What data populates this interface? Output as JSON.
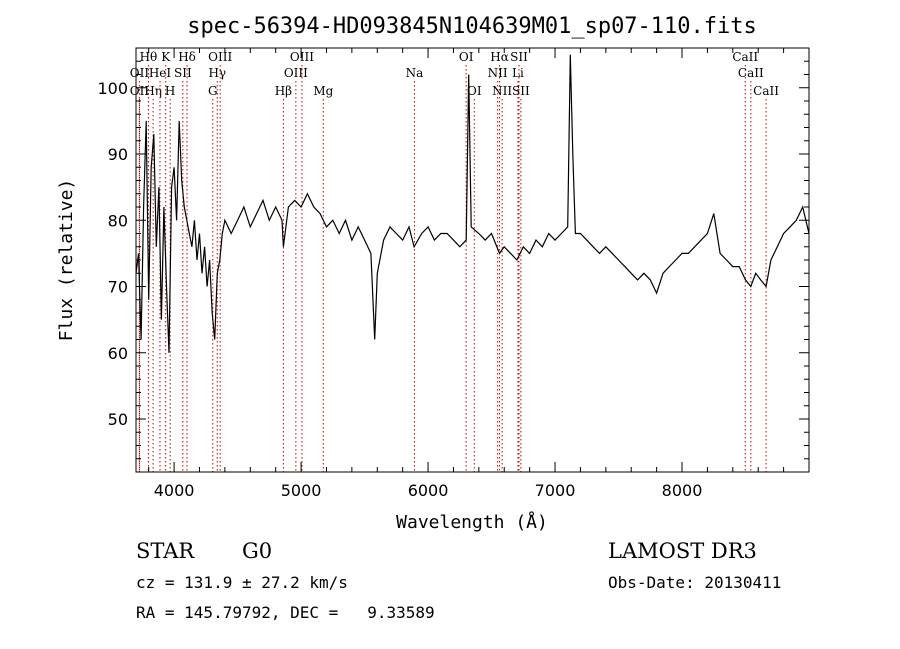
{
  "chart_data": {
    "type": "line",
    "title": "spec-56394-HD093845N104639M01_sp07-110.fits",
    "xlabel": "Wavelength (Å)",
    "ylabel": "Flux (relative)",
    "xlim": [
      3700,
      9000
    ],
    "ylim": [
      42,
      106
    ],
    "grid": false,
    "x_ticks": [
      {
        "value": 4000,
        "label": "4000"
      },
      {
        "value": 5000,
        "label": "5000"
      },
      {
        "value": 6000,
        "label": "6000"
      },
      {
        "value": 7000,
        "label": "7000"
      },
      {
        "value": 8000,
        "label": "8000"
      }
    ],
    "y_ticks": [
      {
        "value": 50,
        "label": "50"
      },
      {
        "value": 60,
        "label": "60"
      },
      {
        "value": 70,
        "label": "70"
      },
      {
        "value": 80,
        "label": "80"
      },
      {
        "value": 90,
        "label": "90"
      },
      {
        "value": 100,
        "label": "100"
      }
    ],
    "series": [
      {
        "name": "flux",
        "color": "#000000",
        "points": [
          [
            3700,
            72
          ],
          [
            3720,
            75
          ],
          [
            3740,
            62
          ],
          [
            3760,
            82
          ],
          [
            3780,
            95
          ],
          [
            3800,
            68
          ],
          [
            3820,
            88
          ],
          [
            3840,
            93
          ],
          [
            3860,
            76
          ],
          [
            3880,
            85
          ],
          [
            3900,
            65
          ],
          [
            3920,
            82
          ],
          [
            3940,
            70
          ],
          [
            3960,
            60
          ],
          [
            3980,
            85
          ],
          [
            4000,
            88
          ],
          [
            4020,
            80
          ],
          [
            4040,
            95
          ],
          [
            4060,
            86
          ],
          [
            4080,
            82
          ],
          [
            4100,
            80
          ],
          [
            4120,
            78
          ],
          [
            4140,
            76
          ],
          [
            4160,
            80
          ],
          [
            4180,
            74
          ],
          [
            4200,
            78
          ],
          [
            4220,
            72
          ],
          [
            4240,
            76
          ],
          [
            4260,
            70
          ],
          [
            4280,
            74
          ],
          [
            4300,
            66
          ],
          [
            4320,
            62
          ],
          [
            4340,
            72
          ],
          [
            4360,
            74
          ],
          [
            4380,
            78
          ],
          [
            4400,
            80
          ],
          [
            4450,
            78
          ],
          [
            4500,
            80
          ],
          [
            4550,
            82
          ],
          [
            4600,
            79
          ],
          [
            4650,
            81
          ],
          [
            4700,
            83
          ],
          [
            4750,
            80
          ],
          [
            4800,
            82
          ],
          [
            4850,
            80
          ],
          [
            4861,
            76
          ],
          [
            4900,
            82
          ],
          [
            4950,
            83
          ],
          [
            5000,
            82
          ],
          [
            5050,
            84
          ],
          [
            5100,
            82
          ],
          [
            5150,
            81
          ],
          [
            5200,
            79
          ],
          [
            5250,
            80
          ],
          [
            5300,
            78
          ],
          [
            5350,
            80
          ],
          [
            5400,
            77
          ],
          [
            5450,
            79
          ],
          [
            5500,
            77
          ],
          [
            5550,
            75
          ],
          [
            5580,
            62
          ],
          [
            5600,
            72
          ],
          [
            5650,
            77
          ],
          [
            5700,
            79
          ],
          [
            5750,
            78
          ],
          [
            5800,
            77
          ],
          [
            5850,
            79
          ],
          [
            5890,
            76
          ],
          [
            5950,
            78
          ],
          [
            6000,
            79
          ],
          [
            6050,
            77
          ],
          [
            6100,
            78
          ],
          [
            6150,
            78
          ],
          [
            6200,
            77
          ],
          [
            6250,
            76
          ],
          [
            6300,
            77
          ],
          [
            6320,
            102
          ],
          [
            6340,
            79
          ],
          [
            6400,
            78
          ],
          [
            6450,
            77
          ],
          [
            6500,
            78
          ],
          [
            6563,
            75
          ],
          [
            6600,
            76
          ],
          [
            6650,
            75
          ],
          [
            6700,
            74
          ],
          [
            6750,
            76
          ],
          [
            6800,
            75
          ],
          [
            6850,
            77
          ],
          [
            6900,
            76
          ],
          [
            6950,
            78
          ],
          [
            7000,
            77
          ],
          [
            7050,
            78
          ],
          [
            7100,
            79
          ],
          [
            7120,
            105
          ],
          [
            7140,
            90
          ],
          [
            7160,
            78
          ],
          [
            7200,
            78
          ],
          [
            7250,
            77
          ],
          [
            7300,
            76
          ],
          [
            7350,
            75
          ],
          [
            7400,
            76
          ],
          [
            7450,
            75
          ],
          [
            7500,
            74
          ],
          [
            7550,
            73
          ],
          [
            7600,
            72
          ],
          [
            7650,
            71
          ],
          [
            7700,
            72
          ],
          [
            7750,
            71
          ],
          [
            7800,
            69
          ],
          [
            7850,
            72
          ],
          [
            7900,
            73
          ],
          [
            7950,
            74
          ],
          [
            8000,
            75
          ],
          [
            8050,
            75
          ],
          [
            8100,
            76
          ],
          [
            8150,
            77
          ],
          [
            8200,
            78
          ],
          [
            8250,
            81
          ],
          [
            8300,
            75
          ],
          [
            8350,
            74
          ],
          [
            8400,
            73
          ],
          [
            8450,
            73
          ],
          [
            8500,
            71
          ],
          [
            8542,
            70
          ],
          [
            8580,
            72
          ],
          [
            8620,
            71
          ],
          [
            8662,
            70
          ],
          [
            8700,
            74
          ],
          [
            8750,
            76
          ],
          [
            8800,
            78
          ],
          [
            8850,
            79
          ],
          [
            8900,
            80
          ],
          [
            8950,
            82
          ],
          [
            9000,
            78
          ]
        ]
      }
    ],
    "line_markers": [
      {
        "label": "Hθ",
        "wavelength": 3798,
        "row": 0
      },
      {
        "label": "OII",
        "wavelength": 3727,
        "row": 1
      },
      {
        "label": "OII",
        "wavelength": 3727,
        "row": 2
      },
      {
        "label": "Hη",
        "wavelength": 3835,
        "row": 2
      },
      {
        "label": "HeI",
        "wavelength": 3889,
        "row": 1
      },
      {
        "label": "K",
        "wavelength": 3934,
        "row": 0
      },
      {
        "label": "SII",
        "wavelength": 4069,
        "row": 1
      },
      {
        "label": "H",
        "wavelength": 3969,
        "row": 2
      },
      {
        "label": "Hδ",
        "wavelength": 4102,
        "row": 0
      },
      {
        "label": "OIII",
        "wavelength": 4363,
        "row": 0
      },
      {
        "label": "Hγ",
        "wavelength": 4340,
        "row": 1
      },
      {
        "label": "G",
        "wavelength": 4305,
        "row": 2
      },
      {
        "label": "Hβ",
        "wavelength": 4861,
        "row": 2
      },
      {
        "label": "OIII",
        "wavelength": 5007,
        "row": 0
      },
      {
        "label": "OIII",
        "wavelength": 4959,
        "row": 1
      },
      {
        "label": "Mg",
        "wavelength": 5175,
        "row": 2
      },
      {
        "label": "Na",
        "wavelength": 5893,
        "row": 1
      },
      {
        "label": "OI",
        "wavelength": 6300,
        "row": 0
      },
      {
        "label": "OI",
        "wavelength": 6364,
        "row": 2
      },
      {
        "label": "Hα",
        "wavelength": 6563,
        "row": 0
      },
      {
        "label": "SII",
        "wavelength": 6716,
        "row": 0
      },
      {
        "label": "NII",
        "wavelength": 6548,
        "row": 1
      },
      {
        "label": "Li",
        "wavelength": 6708,
        "row": 1
      },
      {
        "label": "NII",
        "wavelength": 6583,
        "row": 2
      },
      {
        "label": "SII",
        "wavelength": 6731,
        "row": 2
      },
      {
        "label": "CaII",
        "wavelength": 8498,
        "row": 0
      },
      {
        "label": "CaII",
        "wavelength": 8542,
        "row": 1
      },
      {
        "label": "CaII",
        "wavelength": 8662,
        "row": 2
      }
    ]
  },
  "info": {
    "object_class": "STAR",
    "subclass": "G0",
    "survey": "LAMOST DR3",
    "redshift": "cz = 131.9 ± 27.2 km/s",
    "obs_date": "Obs-Date: 20130411",
    "coords": "RA = 145.79792, DEC =   9.33589"
  },
  "colors": {
    "marker_line": "#cc0000",
    "axis": "#000000",
    "background": "#ffffff"
  }
}
